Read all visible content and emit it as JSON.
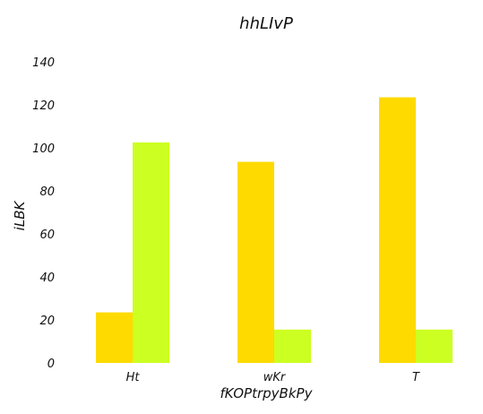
{
  "chart_data": {
    "type": "bar",
    "title": "hhLIvP",
    "xlabel": "fKOPtrpyBkPy",
    "ylabel": "iLBK",
    "categories": [
      "Ht",
      "wKr",
      "T"
    ],
    "series": [
      {
        "values": [
          23.5,
          93.5,
          123.5
        ],
        "color": "#FFDA00"
      },
      {
        "values": [
          102.5,
          15.5,
          15.5
        ],
        "color": "#CCFF22"
      }
    ],
    "ylim": [
      0,
      140
    ],
    "yticks": [
      0,
      20,
      40,
      60,
      80,
      100,
      120,
      140
    ],
    "grid": false,
    "legend": "none"
  }
}
